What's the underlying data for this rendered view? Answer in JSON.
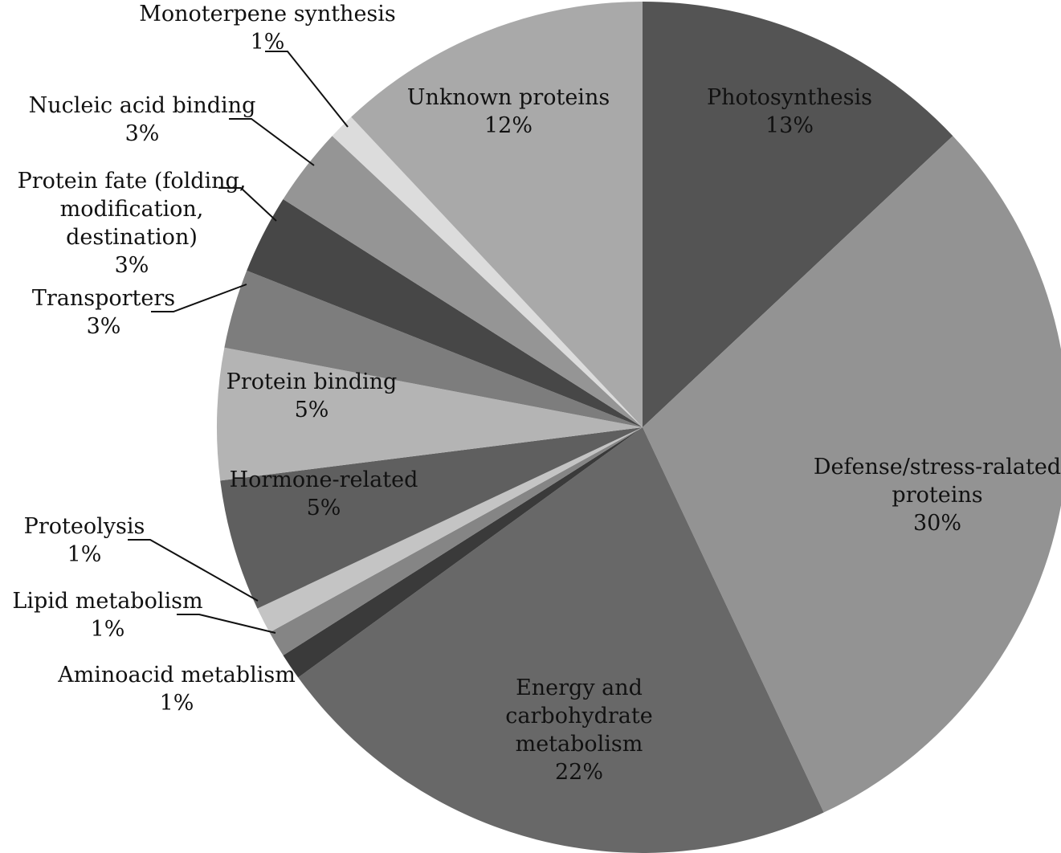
{
  "chart_data": {
    "type": "pie",
    "title": "",
    "slices": [
      {
        "label": [
          "Photosynthesis"
        ],
        "value": 13,
        "pct": "13%",
        "color": "#545454"
      },
      {
        "label": [
          "Defense/stress-ralated",
          "proteins"
        ],
        "value": 30,
        "pct": "30%",
        "color": "#939393"
      },
      {
        "label": [
          "Energy and",
          "carbohydrate",
          "metabolism"
        ],
        "value": 22,
        "pct": "22%",
        "color": "#686868"
      },
      {
        "label": [
          "Aminoacid metablism"
        ],
        "value": 1,
        "pct": "1%",
        "color": "#3a3a3a"
      },
      {
        "label": [
          "Lipid metabolism"
        ],
        "value": 1,
        "pct": "1%",
        "color": "#858585"
      },
      {
        "label": [
          "Proteolysis"
        ],
        "value": 1,
        "pct": "1%",
        "color": "#c4c4c4"
      },
      {
        "label": [
          "Hormone-related"
        ],
        "value": 5,
        "pct": "5%",
        "color": "#5f5f5f"
      },
      {
        "label": [
          "Protein binding"
        ],
        "value": 5,
        "pct": "5%",
        "color": "#b4b4b4"
      },
      {
        "label": [
          "Transporters"
        ],
        "value": 3,
        "pct": "3%",
        "color": "#7d7d7d"
      },
      {
        "label": [
          "Protein fate (folding,",
          "modification,",
          "destination)"
        ],
        "value": 3,
        "pct": "3%",
        "color": "#474747"
      },
      {
        "label": [
          "Nucleic acid binding"
        ],
        "value": 3,
        "pct": "3%",
        "color": "#959595"
      },
      {
        "label": [
          "Monoterpene synthesis"
        ],
        "value": 1,
        "pct": "1%",
        "color": "#dcdcdc"
      },
      {
        "label": [
          "Unknown proteins"
        ],
        "value": 12,
        "pct": "12%",
        "color": "#a9a9a9"
      }
    ]
  }
}
